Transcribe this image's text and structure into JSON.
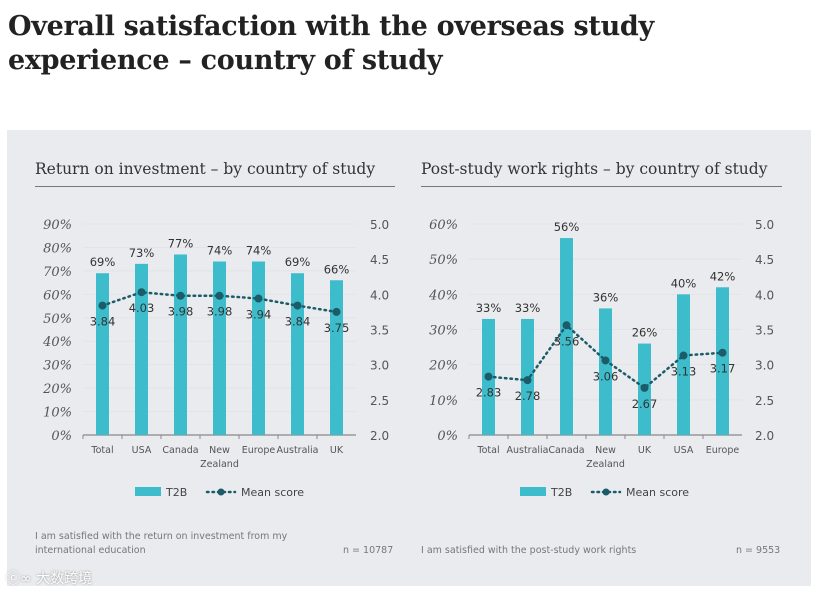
{
  "title": "Overall satisfaction with the overseas study experience – country of study",
  "watermark": "大数跨境",
  "chart_data": [
    {
      "type": "bar",
      "title": "Return on investment – by country of study",
      "categories": [
        "Total",
        "USA",
        "Canada",
        "New Zealand",
        "Europe",
        "Australia",
        "UK"
      ],
      "series": [
        {
          "name": "T2B",
          "axis": "left",
          "values": [
            69,
            73,
            77,
            74,
            74,
            69,
            66
          ]
        },
        {
          "name": "Mean score",
          "axis": "right",
          "type": "line",
          "values": [
            3.84,
            4.03,
            3.98,
            3.98,
            3.94,
            3.84,
            3.75
          ]
        }
      ],
      "ylim": [
        0,
        90
      ],
      "yticks": [
        "0%",
        "10%",
        "20%",
        "30%",
        "40%",
        "50%",
        "60%",
        "70%",
        "80%",
        "90%"
      ],
      "y2lim": [
        2.0,
        5.0
      ],
      "y2ticks": [
        "2.0",
        "2.5",
        "3.0",
        "3.5",
        "4.0",
        "4.5",
        "5.0"
      ],
      "legend": [
        "T2B",
        "Mean score"
      ],
      "legend_position": "bottom",
      "note": "I am satisfied with the return on investment from my international education",
      "n": "n = 10787"
    },
    {
      "type": "bar",
      "title": "Post-study work rights – by country of study",
      "categories": [
        "Total",
        "Australia",
        "Canada",
        "New Zealand",
        "UK",
        "USA",
        "Europe"
      ],
      "series": [
        {
          "name": "T2B",
          "axis": "left",
          "values": [
            33,
            33,
            56,
            36,
            26,
            40,
            42
          ]
        },
        {
          "name": "Mean score",
          "axis": "right",
          "type": "line",
          "values": [
            2.83,
            2.78,
            3.56,
            3.06,
            2.67,
            3.13,
            3.17
          ]
        }
      ],
      "ylim": [
        0,
        60
      ],
      "yticks": [
        "0%",
        "10%",
        "20%",
        "30%",
        "40%",
        "50%",
        "60%"
      ],
      "y2lim": [
        2.0,
        5.0
      ],
      "y2ticks": [
        "2.0",
        "2.5",
        "3.0",
        "3.5",
        "4.0",
        "4.5",
        "5.0"
      ],
      "legend": [
        "T2B",
        "Mean score"
      ],
      "legend_position": "bottom",
      "note": "I am satisfied with the post-study work rights",
      "n": "n = 9553"
    }
  ],
  "colors": {
    "bar": "#3dbccb",
    "line": "#1b5c68",
    "panel": "#e9ebee"
  }
}
